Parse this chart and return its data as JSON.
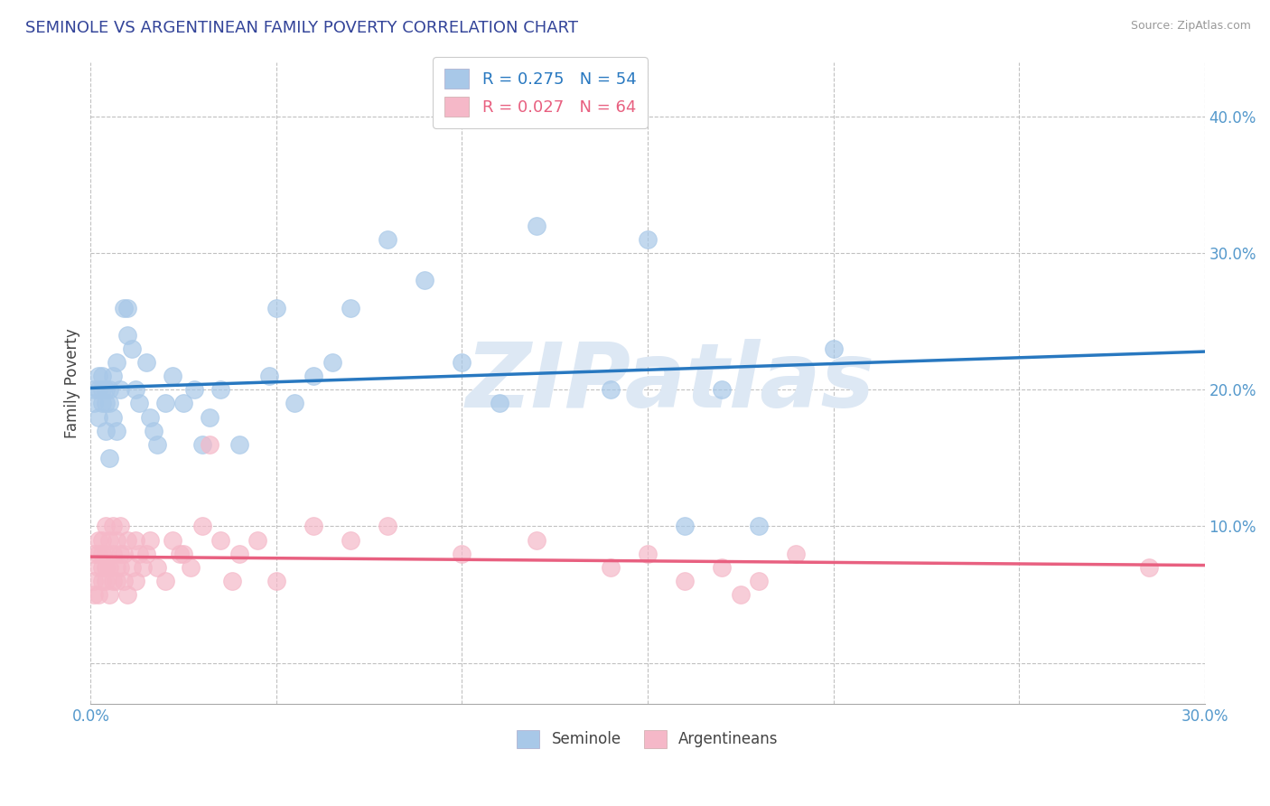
{
  "title": "SEMINOLE VS ARGENTINEAN FAMILY POVERTY CORRELATION CHART",
  "source": "Source: ZipAtlas.com",
  "xlim": [
    0.0,
    0.3
  ],
  "ylim": [
    -0.03,
    0.44
  ],
  "seminole_color": "#a8c8e8",
  "argentinean_color": "#f5b8c8",
  "seminole_line_color": "#2878c0",
  "argentinean_line_color": "#e86080",
  "watermark": "ZIPatlas",
  "legend_r_seminole": "R = 0.275",
  "legend_n_seminole": "N = 54",
  "legend_r_argentinean": "R = 0.027",
  "legend_n_argentinean": "N = 64",
  "seminole_x": [
    0.001,
    0.001,
    0.002,
    0.002,
    0.002,
    0.003,
    0.003,
    0.003,
    0.004,
    0.004,
    0.004,
    0.005,
    0.005,
    0.005,
    0.006,
    0.006,
    0.007,
    0.007,
    0.008,
    0.009,
    0.01,
    0.01,
    0.011,
    0.012,
    0.013,
    0.015,
    0.016,
    0.017,
    0.018,
    0.02,
    0.022,
    0.025,
    0.028,
    0.03,
    0.032,
    0.035,
    0.04,
    0.048,
    0.05,
    0.055,
    0.06,
    0.065,
    0.07,
    0.08,
    0.09,
    0.1,
    0.11,
    0.12,
    0.14,
    0.15,
    0.16,
    0.17,
    0.18,
    0.2
  ],
  "seminole_y": [
    0.19,
    0.2,
    0.18,
    0.2,
    0.21,
    0.19,
    0.21,
    0.2,
    0.17,
    0.2,
    0.19,
    0.15,
    0.19,
    0.2,
    0.18,
    0.21,
    0.17,
    0.22,
    0.2,
    0.26,
    0.24,
    0.26,
    0.23,
    0.2,
    0.19,
    0.22,
    0.18,
    0.17,
    0.16,
    0.19,
    0.21,
    0.19,
    0.2,
    0.16,
    0.18,
    0.2,
    0.16,
    0.21,
    0.26,
    0.19,
    0.21,
    0.22,
    0.26,
    0.31,
    0.28,
    0.22,
    0.19,
    0.32,
    0.2,
    0.31,
    0.1,
    0.2,
    0.1,
    0.23
  ],
  "argentinean_x": [
    0.001,
    0.001,
    0.001,
    0.002,
    0.002,
    0.002,
    0.002,
    0.003,
    0.003,
    0.003,
    0.003,
    0.004,
    0.004,
    0.004,
    0.004,
    0.005,
    0.005,
    0.005,
    0.006,
    0.006,
    0.006,
    0.007,
    0.007,
    0.007,
    0.008,
    0.008,
    0.008,
    0.009,
    0.009,
    0.01,
    0.01,
    0.011,
    0.012,
    0.012,
    0.013,
    0.014,
    0.015,
    0.016,
    0.018,
    0.02,
    0.022,
    0.024,
    0.025,
    0.027,
    0.03,
    0.032,
    0.035,
    0.038,
    0.04,
    0.045,
    0.05,
    0.06,
    0.07,
    0.08,
    0.1,
    0.12,
    0.14,
    0.15,
    0.16,
    0.17,
    0.175,
    0.18,
    0.19,
    0.285
  ],
  "argentinean_y": [
    0.05,
    0.06,
    0.08,
    0.05,
    0.07,
    0.08,
    0.09,
    0.06,
    0.07,
    0.08,
    0.09,
    0.06,
    0.07,
    0.08,
    0.1,
    0.05,
    0.07,
    0.09,
    0.06,
    0.08,
    0.1,
    0.06,
    0.07,
    0.09,
    0.07,
    0.08,
    0.1,
    0.06,
    0.08,
    0.05,
    0.09,
    0.07,
    0.06,
    0.09,
    0.08,
    0.07,
    0.08,
    0.09,
    0.07,
    0.06,
    0.09,
    0.08,
    0.08,
    0.07,
    0.1,
    0.16,
    0.09,
    0.06,
    0.08,
    0.09,
    0.06,
    0.1,
    0.09,
    0.1,
    0.08,
    0.09,
    0.07,
    0.08,
    0.06,
    0.07,
    0.05,
    0.06,
    0.08,
    0.07
  ]
}
